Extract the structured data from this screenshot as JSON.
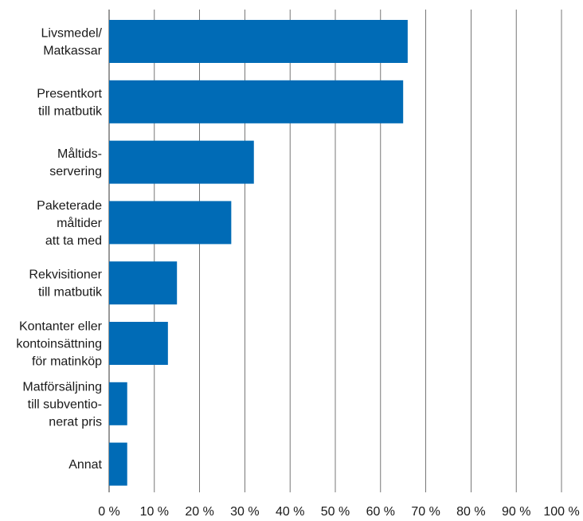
{
  "chart_data": {
    "type": "bar",
    "orientation": "horizontal",
    "title": "",
    "xlabel": "",
    "ylabel": "",
    "xlim": [
      0,
      100
    ],
    "grid": true,
    "bar_color": "#006BB6",
    "grid_color": "#555555",
    "categories": [
      [
        "Livsmedel/",
        "Matkassar"
      ],
      [
        "Presentkort",
        "till matbutik"
      ],
      [
        "Måltids-",
        "servering"
      ],
      [
        "Paketerade",
        "måltider",
        "att ta med"
      ],
      [
        "Rekvisitioner",
        "till matbutik"
      ],
      [
        "Kontanter eller",
        "kontoinsättning",
        "för matinköp"
      ],
      [
        "Matförsäljning",
        "till subventio-",
        "nerat pris"
      ],
      [
        "Annat"
      ]
    ],
    "values": [
      66,
      65,
      32,
      27,
      15,
      13,
      4,
      4
    ],
    "x_ticks": [
      0,
      10,
      20,
      30,
      40,
      50,
      60,
      70,
      80,
      90,
      100
    ],
    "x_tick_labels": [
      "0 %",
      "10 %",
      "20 %",
      "30 %",
      "40 %",
      "50 %",
      "60 %",
      "70 %",
      "80 %",
      "90 %",
      "100 %"
    ]
  }
}
